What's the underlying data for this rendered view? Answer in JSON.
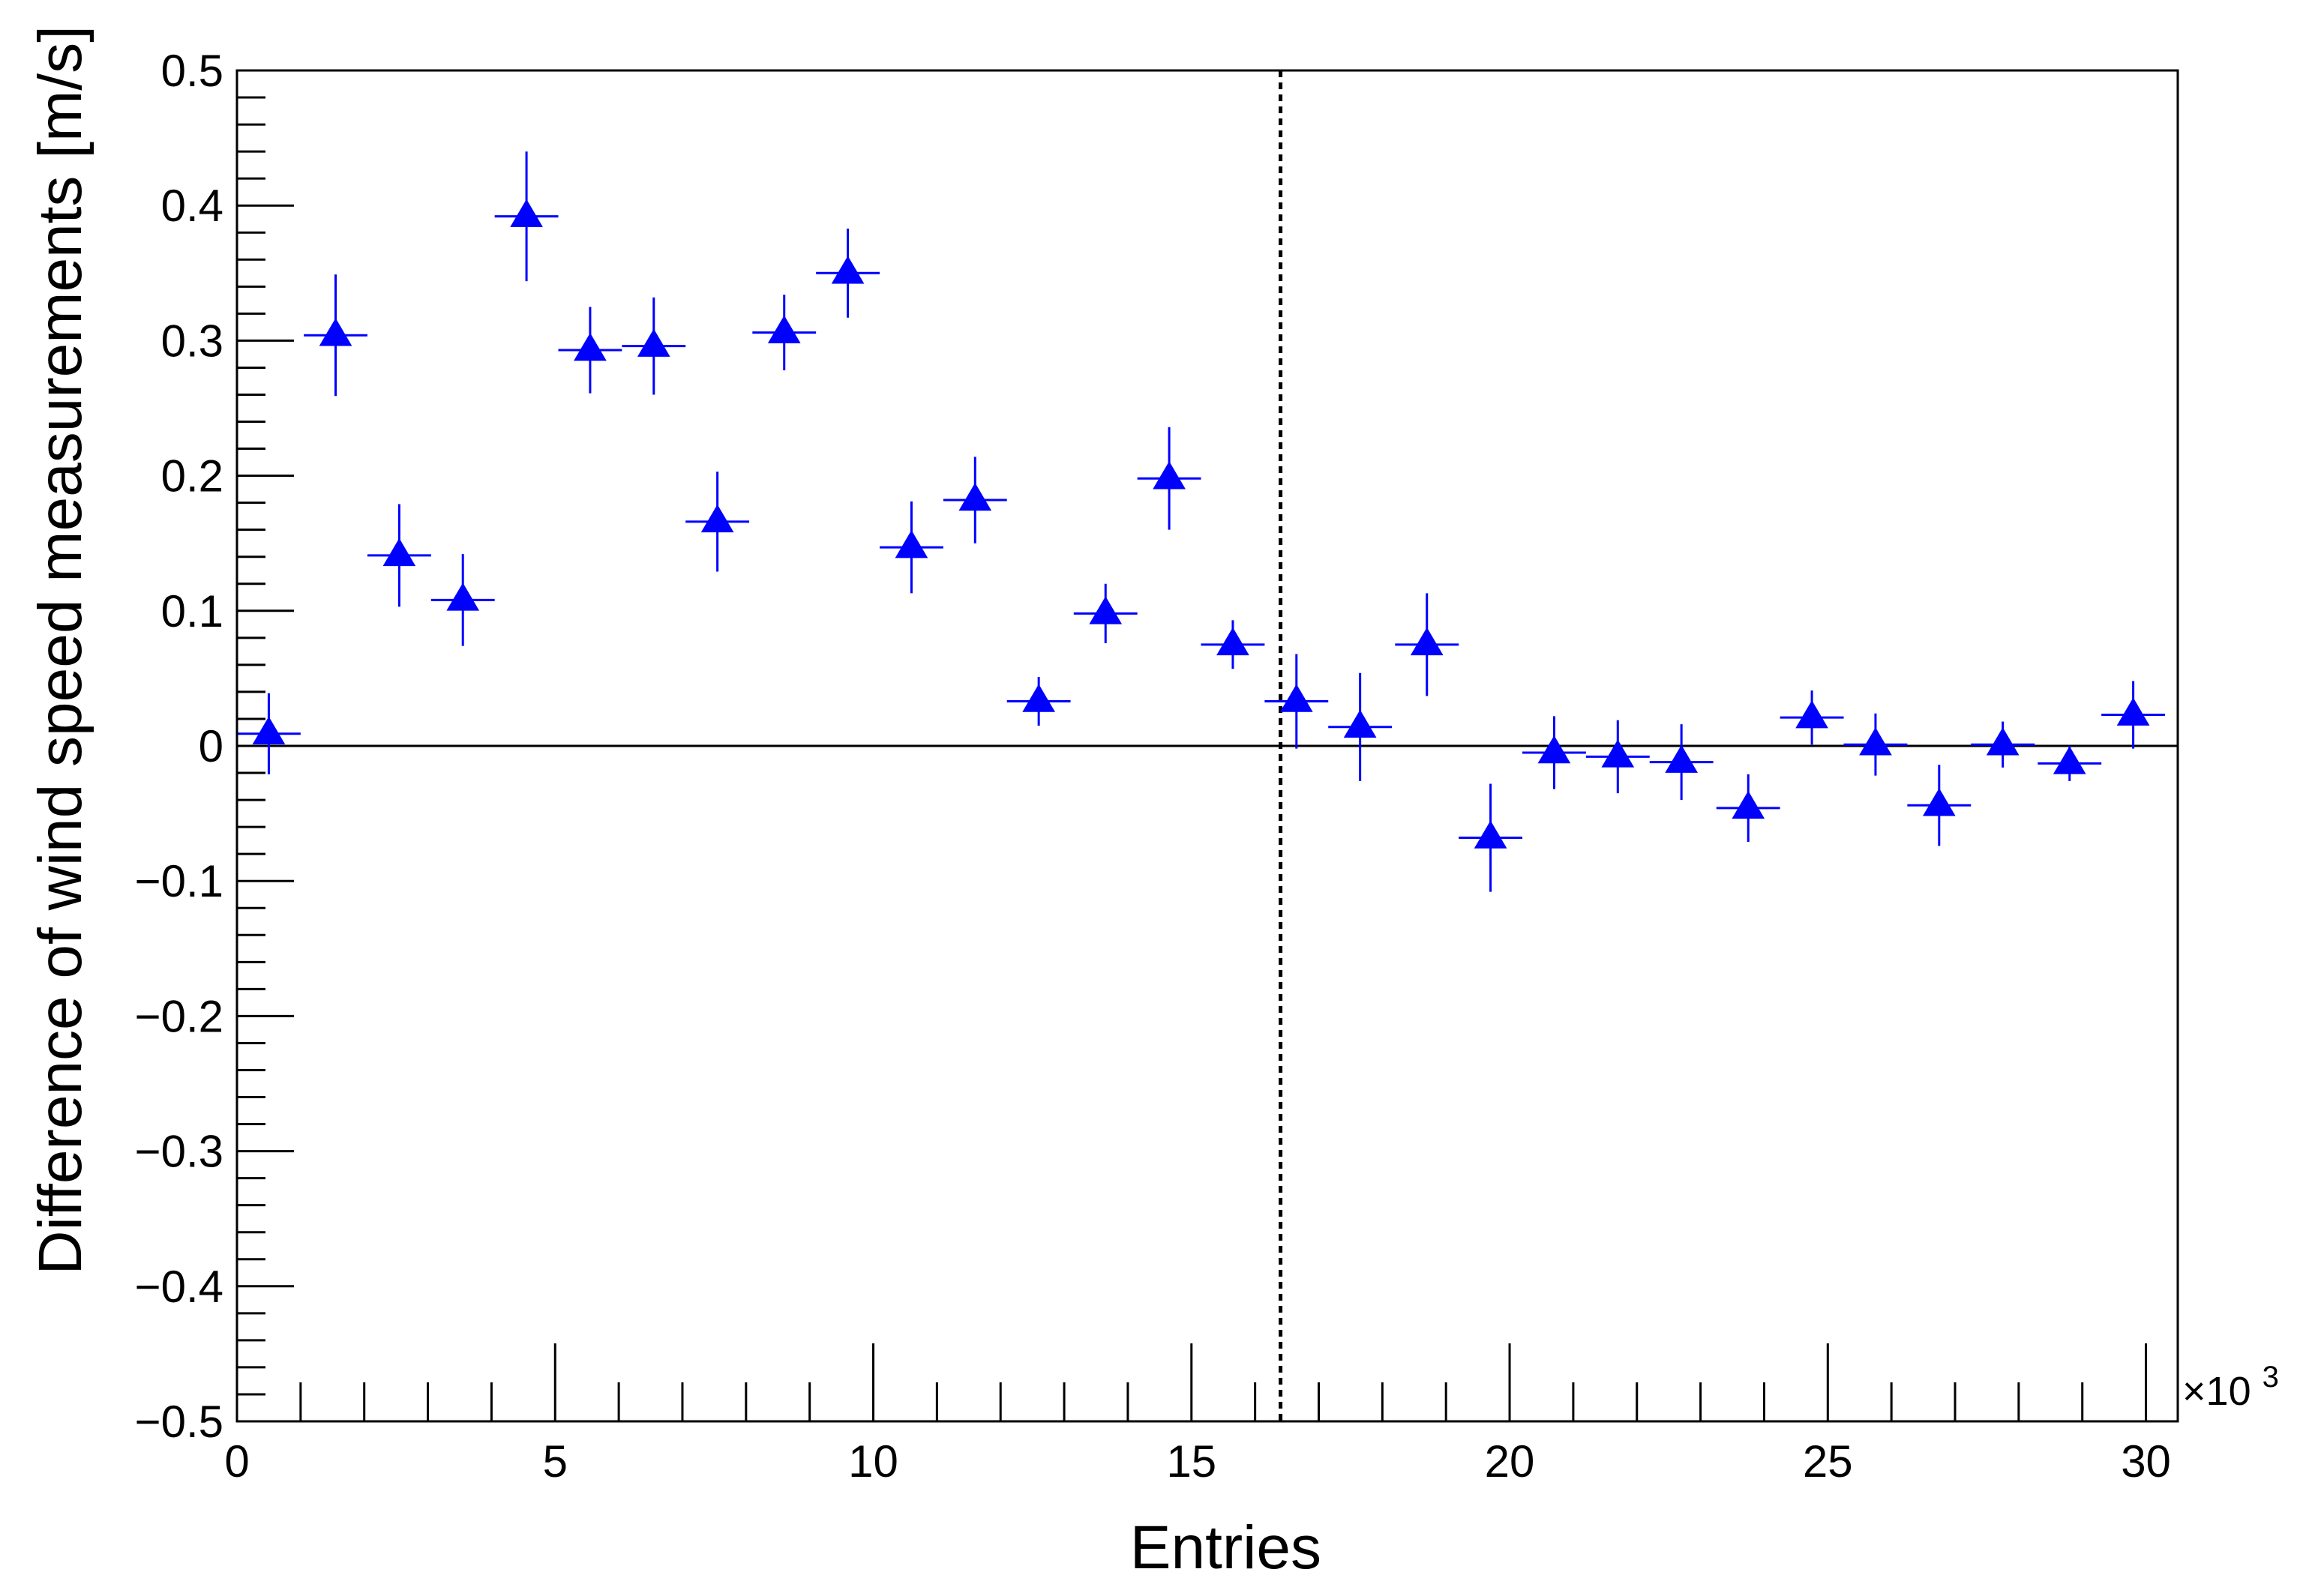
{
  "chart_data": {
    "type": "scatter",
    "xlabel": "Entries",
    "ylabel": "Difference of wind speed measurements [m/s]",
    "x_exponent_label": "×10",
    "x_exponent_power": "3",
    "xlim": [
      0,
      30.5
    ],
    "ylim": [
      -0.5,
      0.5
    ],
    "x_major_ticks": [
      0,
      5,
      10,
      15,
      20,
      25,
      30
    ],
    "x_tick_labels": [
      "0",
      "5",
      "10",
      "15",
      "20",
      "25",
      "30"
    ],
    "y_major_ticks": [
      -0.5,
      -0.4,
      -0.3,
      -0.2,
      -0.1,
      0,
      0.1,
      0.2,
      0.3,
      0.4,
      0.5
    ],
    "y_tick_labels": [
      "−0.5",
      "−0.4",
      "−0.3",
      "−0.2",
      "−0.1",
      "0",
      "0.1",
      "0.2",
      "0.3",
      "0.4",
      "0.5"
    ],
    "grid": false,
    "zero_line": 0,
    "vertical_dashed_line_x": 16.4,
    "marker": "triangle",
    "marker_color": "#0000ff",
    "x_error_half_width": 0.5,
    "points": [
      {
        "x": 0.5,
        "y": 0.009,
        "err": 0.03
      },
      {
        "x": 1.55,
        "y": 0.304,
        "err": 0.045
      },
      {
        "x": 2.55,
        "y": 0.141,
        "err": 0.038
      },
      {
        "x": 3.55,
        "y": 0.108,
        "err": 0.034
      },
      {
        "x": 4.55,
        "y": 0.392,
        "err": 0.048
      },
      {
        "x": 5.55,
        "y": 0.293,
        "err": 0.032
      },
      {
        "x": 6.55,
        "y": 0.296,
        "err": 0.036
      },
      {
        "x": 7.55,
        "y": 0.166,
        "err": 0.037
      },
      {
        "x": 8.6,
        "y": 0.306,
        "err": 0.028
      },
      {
        "x": 9.6,
        "y": 0.35,
        "err": 0.033
      },
      {
        "x": 10.6,
        "y": 0.147,
        "err": 0.034
      },
      {
        "x": 11.6,
        "y": 0.182,
        "err": 0.032
      },
      {
        "x": 12.6,
        "y": 0.033,
        "err": 0.018
      },
      {
        "x": 13.65,
        "y": 0.098,
        "err": 0.022
      },
      {
        "x": 14.65,
        "y": 0.198,
        "err": 0.038
      },
      {
        "x": 15.65,
        "y": 0.075,
        "err": 0.018
      },
      {
        "x": 16.65,
        "y": 0.033,
        "err": 0.035
      },
      {
        "x": 17.65,
        "y": 0.014,
        "err": 0.04
      },
      {
        "x": 18.7,
        "y": 0.075,
        "err": 0.038
      },
      {
        "x": 19.7,
        "y": -0.068,
        "err": 0.04
      },
      {
        "x": 20.7,
        "y": -0.005,
        "err": 0.027
      },
      {
        "x": 21.7,
        "y": -0.008,
        "err": 0.027
      },
      {
        "x": 22.7,
        "y": -0.012,
        "err": 0.028
      },
      {
        "x": 23.75,
        "y": -0.046,
        "err": 0.025
      },
      {
        "x": 24.75,
        "y": 0.021,
        "err": 0.02
      },
      {
        "x": 25.75,
        "y": 0.001,
        "err": 0.023
      },
      {
        "x": 26.75,
        "y": -0.044,
        "err": 0.03
      },
      {
        "x": 27.75,
        "y": 0.001,
        "err": 0.017
      },
      {
        "x": 28.8,
        "y": -0.013,
        "err": 0.013
      },
      {
        "x": 29.8,
        "y": 0.023,
        "err": 0.025
      }
    ]
  }
}
